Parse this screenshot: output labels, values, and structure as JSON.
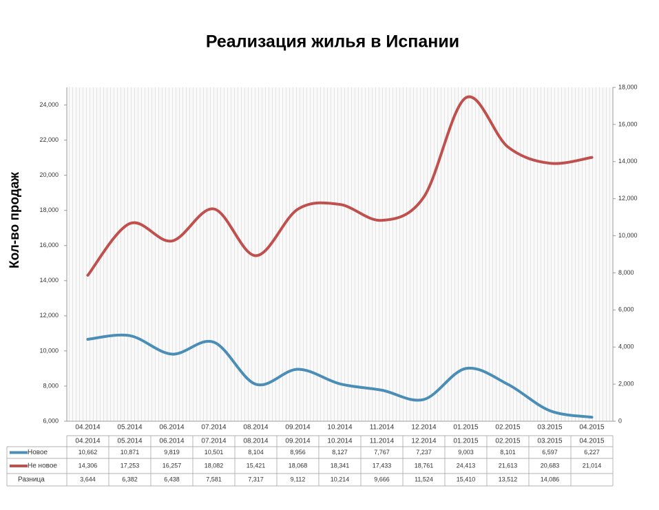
{
  "chart_data": {
    "type": "line",
    "title": "Реализация жилья в Испании",
    "y_label": "Кол-во продаж",
    "categories": [
      "04.2014",
      "05.2014",
      "06.2014",
      "07.2014",
      "08.2014",
      "09.2014",
      "10.2014",
      "11.2014",
      "12.2014",
      "01.2015",
      "02.2015",
      "03.2015",
      "04.2015"
    ],
    "series": [
      {
        "name": "Новое",
        "color": "#4a8db7",
        "values": [
          10662,
          10871,
          9819,
          10501,
          8104,
          8956,
          8127,
          7767,
          7237,
          9003,
          8101,
          6597,
          6227
        ],
        "value_labels": [
          "10,662",
          "10,871",
          "9,819",
          "10,501",
          "8,104",
          "8,956",
          "8,127",
          "7,767",
          "7,237",
          "9,003",
          "8,101",
          "6,597",
          "6,227"
        ]
      },
      {
        "name": "Не новое",
        "color": "#c0504d",
        "values": [
          14306,
          17253,
          16257,
          18082,
          15421,
          18068,
          18341,
          17433,
          18761,
          24413,
          21613,
          20683,
          21014
        ],
        "value_labels": [
          "14,306",
          "17,253",
          "16,257",
          "18,082",
          "15,421",
          "18,068",
          "18,341",
          "17,433",
          "18,761",
          "24,413",
          "21,613",
          "20,683",
          "21,014"
        ]
      }
    ],
    "table_rows": [
      {
        "name": "Разница",
        "values": [
          3644,
          6382,
          6438,
          7581,
          7317,
          9112,
          10214,
          9666,
          11524,
          15410,
          13512,
          14086,
          null
        ],
        "value_labels": [
          "3,644",
          "6,382",
          "6,438",
          "7,581",
          "7,317",
          "9,112",
          "10,214",
          "9,666",
          "11,524",
          "15,410",
          "13,512",
          "14,086",
          null
        ]
      }
    ],
    "ylim": [
      6000,
      25000
    ],
    "yticks": [
      {
        "value": 6000,
        "label": "6,000"
      },
      {
        "value": 8000,
        "label": "8,000"
      },
      {
        "value": 10000,
        "label": "10,000"
      },
      {
        "value": 12000,
        "label": "12,000"
      },
      {
        "value": 14000,
        "label": "14,000"
      },
      {
        "value": 16000,
        "label": "16,000"
      },
      {
        "value": 18000,
        "label": "18,000"
      },
      {
        "value": 20000,
        "label": "20,000"
      },
      {
        "value": 22000,
        "label": "22,000"
      },
      {
        "value": 24000,
        "label": "24,000"
      }
    ],
    "y2lim": [
      0,
      18000
    ],
    "y2ticks": [
      0,
      {
        "value": 2000,
        "label": "2,000"
      },
      {
        "value": 4000,
        "label": "4,000"
      },
      {
        "value": 6000,
        "label": "6,000"
      },
      {
        "value": 8000,
        "label": "8,000"
      },
      {
        "value": 10000,
        "label": "10,000"
      },
      {
        "value": 12000,
        "label": "12,000"
      },
      {
        "value": 14000,
        "label": "14,000"
      },
      {
        "value": 16000,
        "label": "16,000"
      },
      {
        "value": 18000,
        "label": "18,000"
      }
    ]
  }
}
